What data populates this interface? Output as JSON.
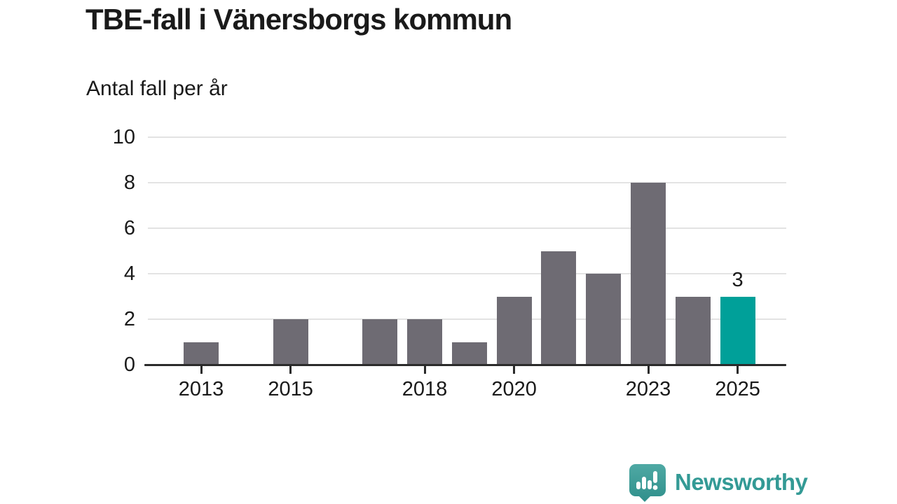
{
  "header": {
    "title": "TBE-fall i Vänersborgs kommun",
    "subtitle": "Antal fall per år"
  },
  "chart_data": {
    "type": "bar",
    "title": "TBE-fall i Vänersborgs kommun",
    "subtitle": "Antal fall per år",
    "categories": [
      2013,
      2014,
      2015,
      2016,
      2017,
      2018,
      2019,
      2020,
      2021,
      2022,
      2023,
      2024,
      2025
    ],
    "values": [
      1,
      0,
      2,
      0,
      2,
      2,
      1,
      3,
      5,
      4,
      8,
      3,
      3
    ],
    "highlight": {
      "category": 2025,
      "value": 3,
      "label": "3"
    },
    "xticks": [
      2013,
      2015,
      2018,
      2020,
      2023,
      2025
    ],
    "yticks": [
      0,
      2,
      4,
      6,
      8,
      10
    ],
    "ylim": [
      0,
      10
    ],
    "grid": "horizontal",
    "legend": "none",
    "colors": {
      "bar": "#6e6b73",
      "highlight": "#00a099",
      "grid": "#e3e3e3",
      "axis": "#2b2b2b",
      "text": "#1a1a1a"
    }
  },
  "footer": {
    "brand": "Newsworthy",
    "brand_color": "#339a95",
    "logo_icon": "speech-bubble-bar-chart-icon",
    "logo_colors": {
      "bubble_top": "#4fa9a4",
      "bubble_bottom": "#2f8f8b",
      "glyph": "#ffffff"
    }
  }
}
